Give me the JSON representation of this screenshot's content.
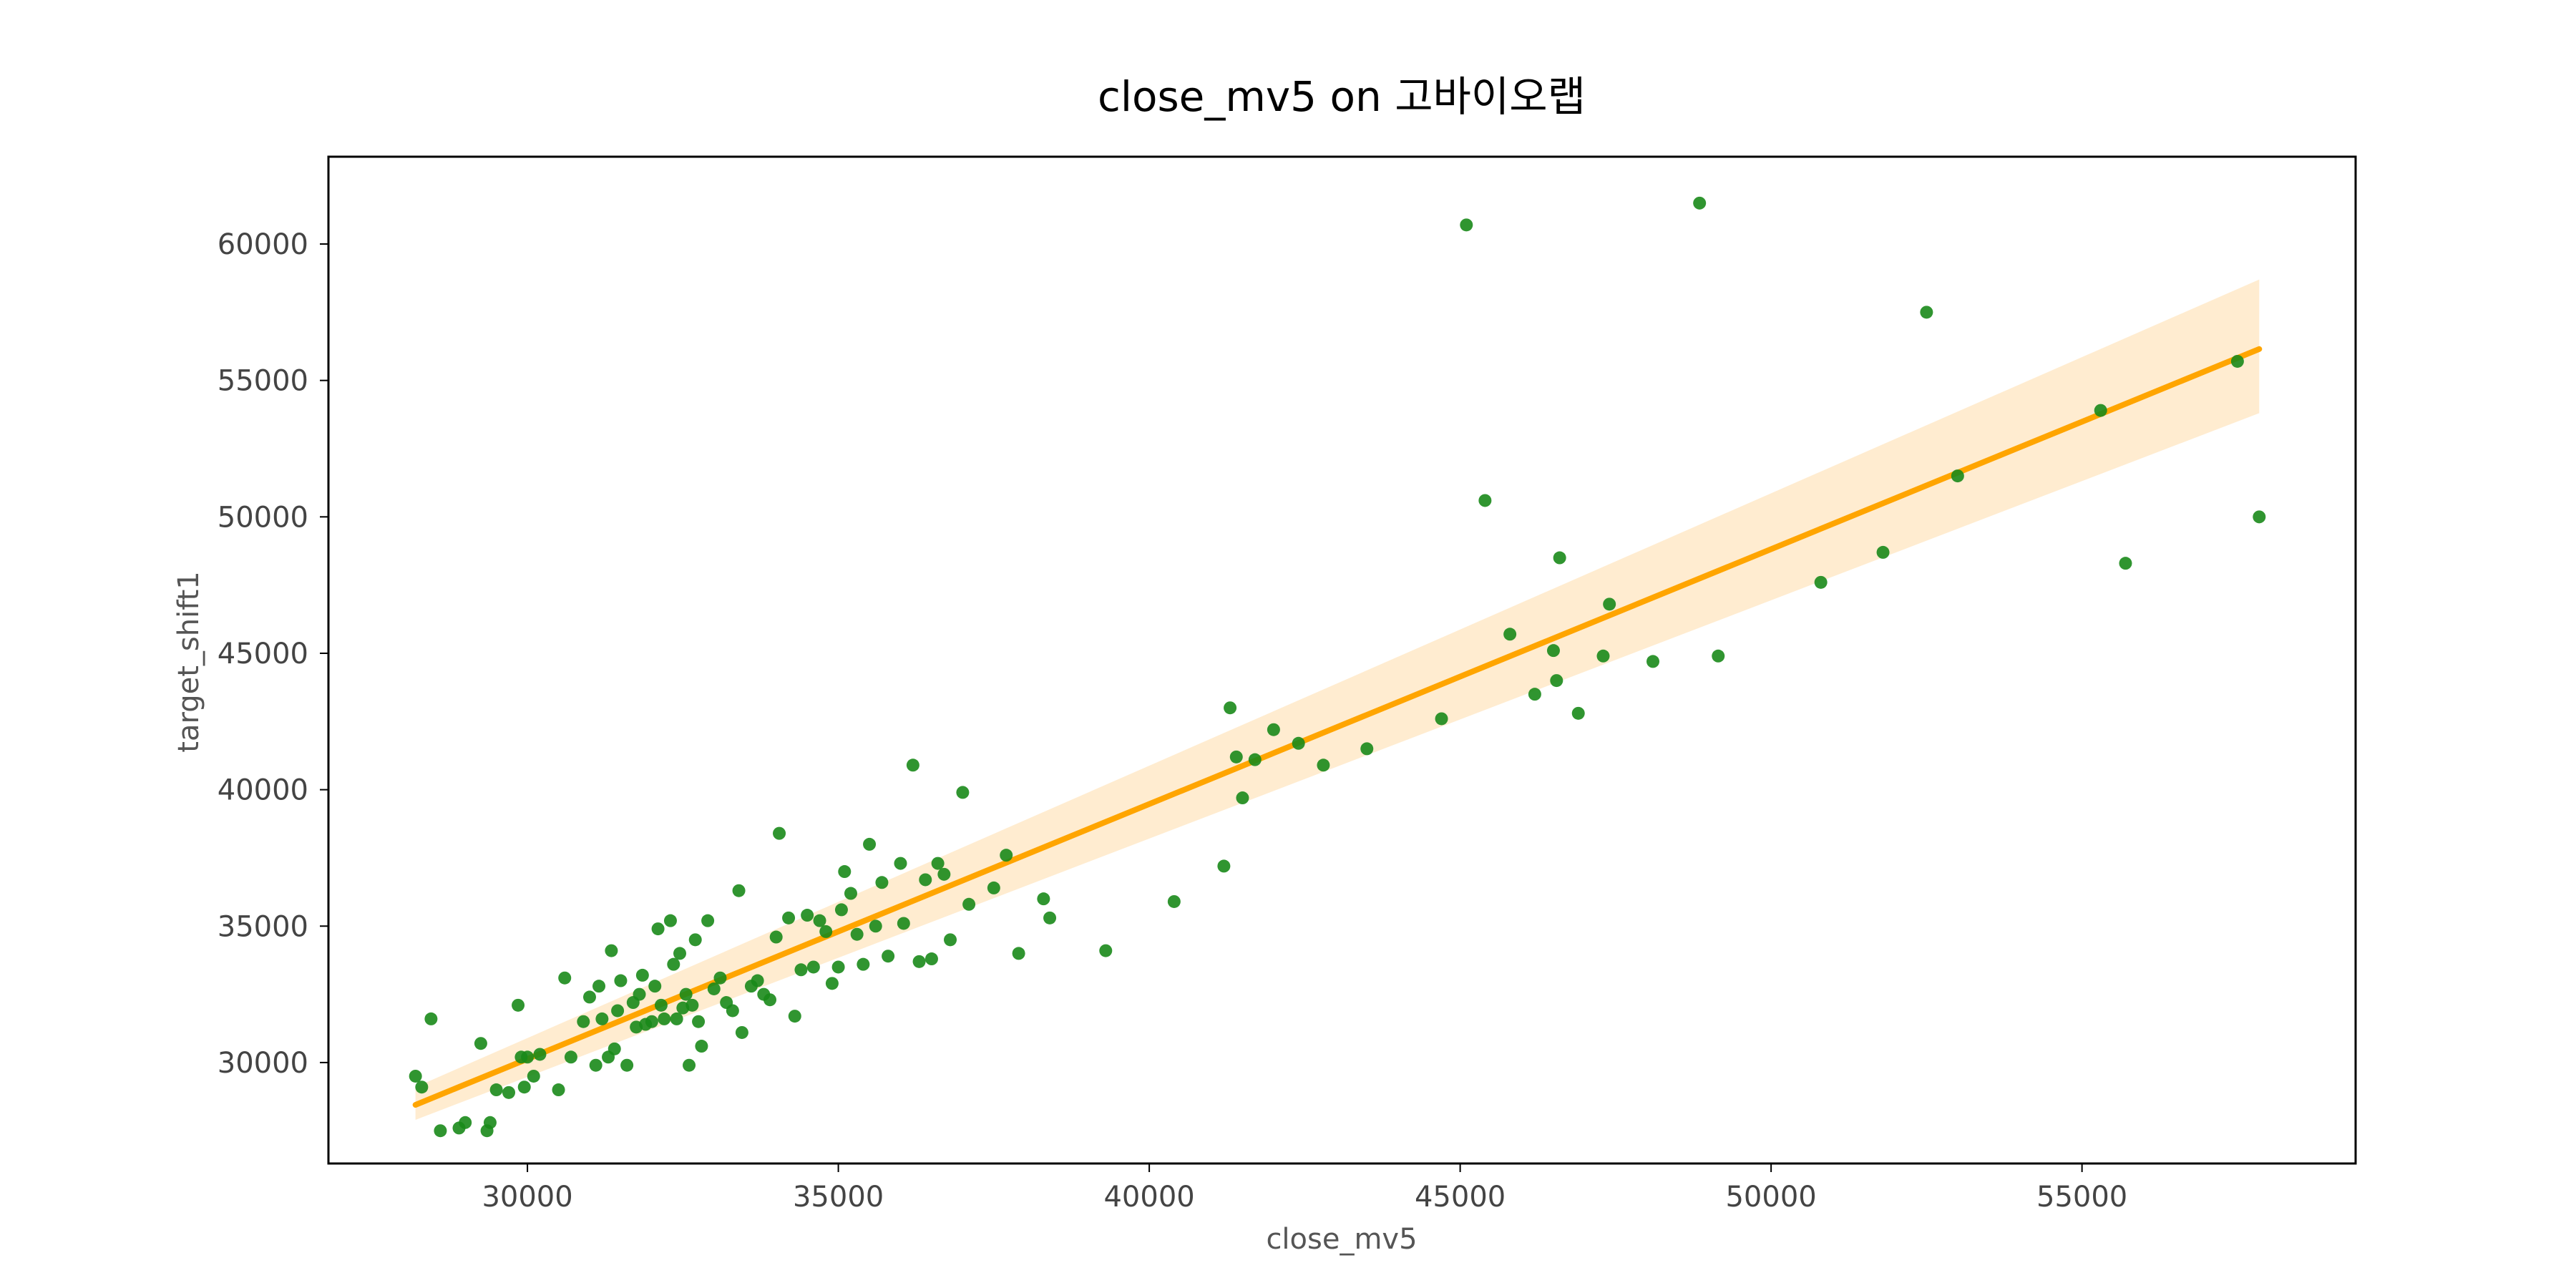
{
  "chart_data": {
    "type": "scatter",
    "title": "close_mv5 on 고바이오랩",
    "xlabel": "close_mv5",
    "ylabel": "target_shift1",
    "xlim": [
      26800,
      59400
    ],
    "ylim": [
      26300,
      63200
    ],
    "xticks": [
      30000,
      35000,
      40000,
      45000,
      50000,
      55000
    ],
    "yticks": [
      30000,
      35000,
      40000,
      45000,
      50000,
      55000,
      60000
    ],
    "xtick_labels": [
      "30000",
      "35000",
      "40000",
      "45000",
      "50000",
      "55000"
    ],
    "ytick_labels": [
      "30000",
      "35000",
      "40000",
      "45000",
      "50000",
      "55000",
      "60000"
    ],
    "grid": false,
    "colors": {
      "points": "#1a8a1a",
      "line": "#ffa500",
      "band": "#ffe9c8"
    },
    "series": [
      {
        "name": "observations",
        "x": [
          28200,
          28300,
          28450,
          28600,
          28900,
          29000,
          29250,
          29350,
          29400,
          29500,
          29700,
          29850,
          29900,
          29950,
          30000,
          30100,
          30200,
          30500,
          30600,
          30700,
          30900,
          31000,
          31100,
          31150,
          31200,
          31300,
          31350,
          31400,
          31450,
          31500,
          31600,
          31700,
          31750,
          31800,
          31850,
          31900,
          32000,
          32050,
          32100,
          32150,
          32200,
          32300,
          32350,
          32400,
          32450,
          32500,
          32550,
          32600,
          32650,
          32700,
          32750,
          32800,
          32900,
          33000,
          33100,
          33200,
          33300,
          33400,
          33450,
          33600,
          33700,
          33800,
          33900,
          34000,
          34050,
          34200,
          34300,
          34400,
          34500,
          34600,
          34700,
          34800,
          34900,
          35000,
          35050,
          35100,
          35200,
          35300,
          35400,
          35500,
          35600,
          35700,
          35800,
          36000,
          36050,
          36200,
          36300,
          36400,
          36500,
          36600,
          36700,
          36800,
          37000,
          37100,
          37500,
          37700,
          37900,
          38300,
          38400,
          39300,
          40400,
          41200,
          41300,
          41400,
          41500,
          41700,
          42000,
          42400,
          42800,
          43500,
          44700,
          45100,
          45400,
          45800,
          46200,
          46500,
          46550,
          46600,
          46900,
          47300,
          47400,
          48100,
          48850,
          49150,
          50800,
          51800,
          52500,
          53000,
          55300,
          55700,
          57500,
          57850
        ],
        "y": [
          29500,
          29100,
          31600,
          27500,
          27600,
          27800,
          30700,
          27500,
          27800,
          29000,
          28900,
          32100,
          30200,
          29100,
          30200,
          29500,
          30300,
          29000,
          33100,
          30200,
          31500,
          32400,
          29900,
          32800,
          31600,
          30200,
          34100,
          30500,
          31900,
          33000,
          29900,
          32200,
          31300,
          32500,
          33200,
          31400,
          31500,
          32800,
          34900,
          32100,
          31600,
          35200,
          33600,
          31600,
          34000,
          32000,
          32500,
          29900,
          32100,
          34500,
          31500,
          30600,
          35200,
          32700,
          33100,
          32200,
          31900,
          36300,
          31100,
          32800,
          33000,
          32500,
          32300,
          34600,
          38400,
          35300,
          31700,
          33400,
          35400,
          33500,
          35200,
          34800,
          32900,
          33500,
          35600,
          37000,
          36200,
          34700,
          33600,
          38000,
          35000,
          36600,
          33900,
          37300,
          35100,
          40900,
          33700,
          36700,
          33800,
          37300,
          36900,
          34500,
          39900,
          35800,
          36400,
          37600,
          34000,
          36000,
          35300,
          34100,
          35900,
          37200,
          43000,
          41200,
          39700,
          41100,
          42200,
          41700,
          40900,
          41500,
          42600,
          60700,
          50600,
          45700,
          43500,
          45100,
          44000,
          48500,
          42800,
          44900,
          46800,
          44700,
          61500,
          44900,
          47600,
          48700,
          57500,
          51500,
          53900,
          48300,
          55700,
          50000
        ]
      }
    ],
    "regression": {
      "name": "linear fit",
      "x": [
        28200,
        57850
      ],
      "y": [
        28450,
        56150
      ],
      "ci_upper": [
        29100,
        58700
      ],
      "ci_lower": [
        27900,
        53800
      ]
    }
  }
}
